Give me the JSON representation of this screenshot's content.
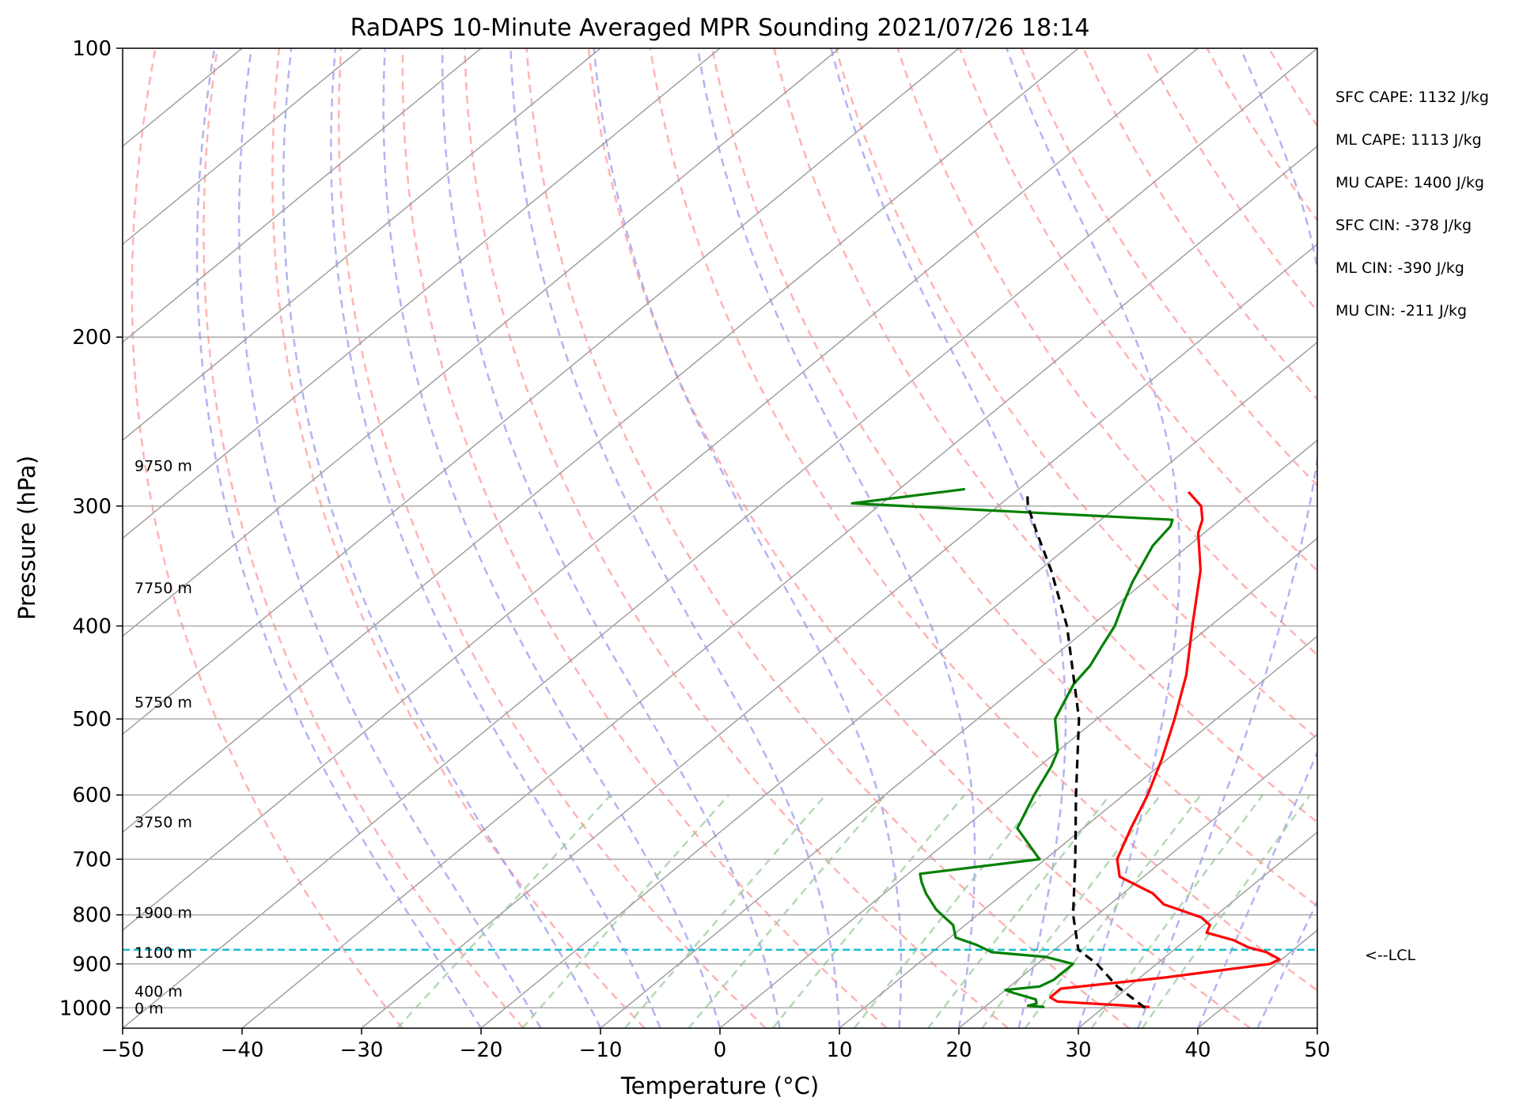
{
  "chart_data": {
    "type": "line",
    "title": "RaDAPS 10-Minute Averaged MPR Sounding 2021/07/26 18:14",
    "xlabel": "Temperature (°C)",
    "ylabel": "Pressure (hPa)",
    "xlim": [
      -50,
      50
    ],
    "ylim": [
      1050,
      100
    ],
    "y_scale": "log",
    "skew": true,
    "grid": true,
    "x_ticks": [
      -50,
      -40,
      -30,
      -20,
      -10,
      0,
      10,
      20,
      30,
      40,
      50
    ],
    "x_tick_labels": [
      "−50",
      "−40",
      "−30",
      "−20",
      "−10",
      "0",
      "10",
      "20",
      "30",
      "40",
      "50"
    ],
    "y_ticks": [
      100,
      200,
      300,
      400,
      500,
      600,
      700,
      800,
      900,
      1000
    ],
    "y_tick_labels": [
      "100",
      "200",
      "300",
      "400",
      "500",
      "600",
      "700",
      "800",
      "900",
      "1000"
    ],
    "series": [
      {
        "role": "temperature",
        "color": "#ff0000",
        "points": [
          [
            998,
            33.8
          ],
          [
            985,
            25.5
          ],
          [
            975,
            24.5
          ],
          [
            955,
            24.5
          ],
          [
            930,
            32.0
          ],
          [
            900,
            39.5
          ],
          [
            890,
            39.8
          ],
          [
            875,
            38.0
          ],
          [
            865,
            36.0
          ],
          [
            850,
            34.0
          ],
          [
            835,
            31.0
          ],
          [
            820,
            30.5
          ],
          [
            805,
            29.0
          ],
          [
            780,
            24.5
          ],
          [
            760,
            22.5
          ],
          [
            730,
            18.0
          ],
          [
            700,
            16.0
          ],
          [
            650,
            14.0
          ],
          [
            600,
            12.0
          ],
          [
            550,
            9.5
          ],
          [
            500,
            6.5
          ],
          [
            450,
            3.0
          ],
          [
            400,
            -1.5
          ],
          [
            350,
            -6.5
          ],
          [
            320,
            -10.5
          ],
          [
            310,
            -11.5
          ],
          [
            300,
            -13.0
          ],
          [
            290,
            -15.5
          ]
        ]
      },
      {
        "role": "dewpoint",
        "color": "#008000",
        "points": [
          [
            998,
            25.0
          ],
          [
            995,
            23.5
          ],
          [
            990,
            24.0
          ],
          [
            980,
            23.5
          ],
          [
            965,
            21.0
          ],
          [
            958,
            20.0
          ],
          [
            950,
            22.5
          ],
          [
            935,
            23.0
          ],
          [
            915,
            23.0
          ],
          [
            900,
            23.0
          ],
          [
            885,
            20.0
          ],
          [
            875,
            15.0
          ],
          [
            860,
            13.0
          ],
          [
            845,
            10.5
          ],
          [
            820,
            9.0
          ],
          [
            790,
            6.0
          ],
          [
            760,
            3.5
          ],
          [
            740,
            2.0
          ],
          [
            725,
            1.0
          ],
          [
            700,
            9.5
          ],
          [
            650,
            4.5
          ],
          [
            600,
            2.5
          ],
          [
            560,
            1.0
          ],
          [
            540,
            0.0
          ],
          [
            500,
            -3.5
          ],
          [
            460,
            -5.5
          ],
          [
            440,
            -6.0
          ],
          [
            420,
            -7.0
          ],
          [
            400,
            -8.0
          ],
          [
            380,
            -9.5
          ],
          [
            360,
            -11.0
          ],
          [
            330,
            -13.0
          ],
          [
            315,
            -13.5
          ],
          [
            310,
            -14.0
          ],
          [
            298,
            -42.5
          ],
          [
            288,
            -34.5
          ]
        ]
      },
      {
        "role": "parcel",
        "color": "#000000",
        "dashed": true,
        "points": [
          [
            1000,
            33.5
          ],
          [
            950,
            29.0
          ],
          [
            900,
            25.0
          ],
          [
            870,
            22.0
          ],
          [
            800,
            18.0
          ],
          [
            700,
            12.5
          ],
          [
            600,
            6.0
          ],
          [
            500,
            -1.5
          ],
          [
            400,
            -12.0
          ],
          [
            350,
            -19.0
          ],
          [
            320,
            -24.0
          ],
          [
            300,
            -27.5
          ],
          [
            290,
            -29.0
          ]
        ]
      }
    ],
    "lcl": {
      "pressure": 870,
      "label": "<--LCL",
      "color": "#17becf"
    },
    "altitude_labels": [
      {
        "text": "0 m",
        "pressure": 1000
      },
      {
        "text": "400 m",
        "pressure": 960
      },
      {
        "text": "1100 m",
        "pressure": 875
      },
      {
        "text": "1900 m",
        "pressure": 795
      },
      {
        "text": "3750 m",
        "pressure": 640
      },
      {
        "text": "5750 m",
        "pressure": 480
      },
      {
        "text": "7750 m",
        "pressure": 365
      },
      {
        "text": "9750 m",
        "pressure": 272
      }
    ],
    "annotations": [
      "SFC CAPE: 1132 J/kg",
      "ML CAPE: 1113 J/kg",
      "MU CAPE: 1400 J/kg",
      "SFC CIN: -378 J/kg",
      "ML CIN: -390 J/kg",
      "MU CIN: -211 J/kg"
    ],
    "background_lines": {
      "isotherms_color": "#a0a0a0",
      "dry_adiabats_color": "#ff9999",
      "moist_adiabats_color": "#9999ee",
      "mixing_ratio_color": "#99cc99"
    }
  }
}
